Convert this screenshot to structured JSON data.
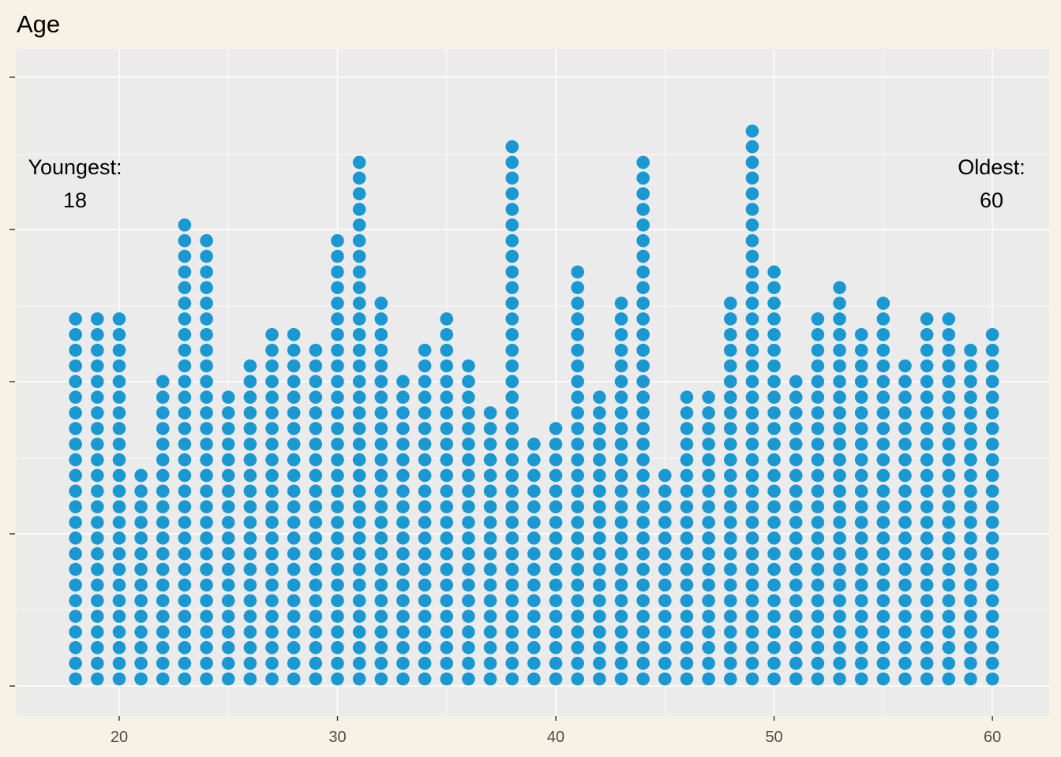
{
  "chart_data": {
    "type": "dotplot",
    "title": "Age",
    "xlabel": "",
    "ylabel": "",
    "xlim": [
      15.3,
      62.6
    ],
    "x_ticks": [
      20,
      30,
      40,
      50,
      60
    ],
    "y_axis_labels_shown": false,
    "grid": true,
    "dot_color": "#1a98d2",
    "panel_color": "#ebebeb",
    "background_color": "#f8f2e6",
    "ages": [
      18,
      19,
      20,
      21,
      22,
      23,
      24,
      25,
      26,
      27,
      28,
      29,
      30,
      31,
      32,
      33,
      34,
      35,
      36,
      37,
      38,
      39,
      40,
      41,
      42,
      43,
      44,
      45,
      46,
      47,
      48,
      49,
      50,
      51,
      52,
      53,
      54,
      55,
      56,
      57,
      58,
      59,
      60
    ],
    "counts": [
      24,
      24,
      24,
      14,
      20,
      30,
      29,
      19,
      21,
      23,
      23,
      22,
      29,
      34,
      25,
      20,
      22,
      24,
      21,
      18,
      35,
      16,
      17,
      27,
      19,
      25,
      34,
      14,
      19,
      19,
      25,
      36,
      27,
      20,
      24,
      26,
      23,
      25,
      21,
      24,
      24,
      22,
      23
    ],
    "annotations": [
      {
        "label": "Youngest:",
        "value": "18"
      },
      {
        "label": "Oldest:",
        "value": "60"
      }
    ]
  }
}
